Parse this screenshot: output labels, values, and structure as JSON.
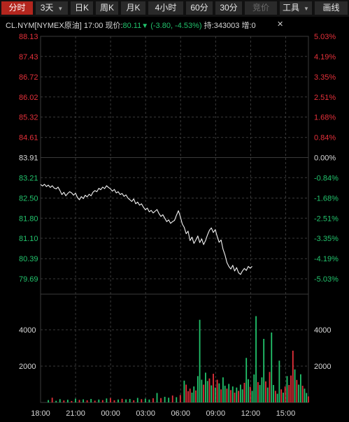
{
  "toolbar": {
    "tabs": [
      {
        "label": "分时",
        "active": true
      },
      {
        "label": "3天",
        "dropdown": true
      },
      {
        "label": "日K"
      },
      {
        "label": "周K"
      },
      {
        "label": "月K"
      },
      {
        "label": "4小时"
      },
      {
        "label": "60分"
      },
      {
        "label": "30分"
      },
      {
        "label": "竞价",
        "disabled": true
      },
      {
        "label": "工具",
        "dropdown": true
      },
      {
        "label": "画线"
      }
    ]
  },
  "info": {
    "symbol": "CL.NYM[NYMEX原油]",
    "time": "17:00",
    "price_label": "现价:",
    "price": "80.11",
    "change": "(-3.80, -4.53%)",
    "holding": "持:343003",
    "increase_label": "增:0"
  },
  "colors": {
    "up": "#e5303a",
    "down": "#22c36c",
    "neutral": "#d8d8d8",
    "grid": "#3a3a3a",
    "price_line": "#f2f2f2"
  },
  "chart_data": {
    "type": "line",
    "reference_price": 83.91,
    "price_axis_labels": [
      "88.13",
      "87.43",
      "86.72",
      "86.02",
      "85.32",
      "84.61",
      "83.91",
      "83.21",
      "82.50",
      "81.80",
      "81.10",
      "80.39",
      "79.69"
    ],
    "percent_axis_labels": [
      "5.03%",
      "4.19%",
      "3.35%",
      "2.51%",
      "1.68%",
      "0.84%",
      "0.00%",
      "-0.84%",
      "-1.68%",
      "-2.51%",
      "-3.35%",
      "-4.19%",
      "-5.03%"
    ],
    "ylim": [
      79.69,
      88.13
    ],
    "volume_axis_labels": [
      "4000",
      "2000"
    ],
    "volume_ylim": [
      0,
      5000
    ],
    "x_tick_labels": [
      "18:00",
      "21:00",
      "00:00",
      "03:00",
      "06:00",
      "09:00",
      "12:00",
      "15:00"
    ],
    "x_range": [
      0,
      69
    ],
    "price_series": [
      [
        0,
        82.97
      ],
      [
        0.5,
        82.92
      ],
      [
        1,
        82.98
      ],
      [
        1.5,
        82.9
      ],
      [
        2,
        82.95
      ],
      [
        2.5,
        82.87
      ],
      [
        3,
        82.93
      ],
      [
        3.5,
        82.85
      ],
      [
        4,
        82.82
      ],
      [
        4.5,
        82.88
      ],
      [
        5,
        82.76
      ],
      [
        5.5,
        82.62
      ],
      [
        6,
        82.7
      ],
      [
        6.5,
        82.58
      ],
      [
        7,
        82.66
      ],
      [
        7.5,
        82.72
      ],
      [
        8,
        82.68
      ],
      [
        8.5,
        82.6
      ],
      [
        9,
        82.67
      ],
      [
        9.5,
        82.52
      ],
      [
        10,
        82.44
      ],
      [
        10.5,
        82.55
      ],
      [
        11,
        82.48
      ],
      [
        11.5,
        82.6
      ],
      [
        12,
        82.54
      ],
      [
        12.5,
        82.63
      ],
      [
        13,
        82.58
      ],
      [
        13.5,
        82.7
      ],
      [
        14,
        82.76
      ],
      [
        14.5,
        82.72
      ],
      [
        15,
        82.84
      ],
      [
        15.5,
        82.79
      ],
      [
        16,
        82.88
      ],
      [
        16.5,
        82.83
      ],
      [
        17,
        82.93
      ],
      [
        17.5,
        82.87
      ],
      [
        18,
        82.82
      ],
      [
        18.5,
        82.74
      ],
      [
        19,
        82.8
      ],
      [
        19.5,
        82.68
      ],
      [
        20,
        82.72
      ],
      [
        20.5,
        82.62
      ],
      [
        21,
        82.66
      ],
      [
        21.5,
        82.56
      ],
      [
        22,
        82.61
      ],
      [
        22.5,
        82.5
      ],
      [
        23,
        82.44
      ],
      [
        23.5,
        82.38
      ],
      [
        24,
        82.47
      ],
      [
        24.5,
        82.3
      ],
      [
        25,
        82.36
      ],
      [
        25.5,
        82.25
      ],
      [
        26,
        82.3
      ],
      [
        26.5,
        82.18
      ],
      [
        27,
        82.09
      ],
      [
        27.5,
        82.15
      ],
      [
        28,
        82.02
      ],
      [
        28.5,
        82.07
      ],
      [
        29,
        81.98
      ],
      [
        29.5,
        82.04
      ],
      [
        30,
        82.1
      ],
      [
        30.5,
        81.96
      ],
      [
        31,
        81.86
      ],
      [
        31.5,
        81.92
      ],
      [
        32,
        81.8
      ],
      [
        32.5,
        81.68
      ],
      [
        33,
        81.74
      ],
      [
        33.5,
        81.62
      ],
      [
        34,
        81.68
      ],
      [
        34.5,
        81.72
      ],
      [
        35,
        81.9
      ],
      [
        35.5,
        82.06
      ],
      [
        36,
        81.86
      ],
      [
        36.5,
        81.6
      ],
      [
        37,
        81.48
      ],
      [
        37.5,
        81.26
      ],
      [
        38,
        81.35
      ],
      [
        38.5,
        81.02
      ],
      [
        39,
        81.14
      ],
      [
        39.5,
        80.92
      ],
      [
        40,
        81.04
      ],
      [
        40.5,
        81.18
      ],
      [
        41,
        80.95
      ],
      [
        41.5,
        81.08
      ],
      [
        42,
        80.88
      ],
      [
        42.5,
        81.02
      ],
      [
        43,
        81.22
      ],
      [
        43.5,
        81.38
      ],
      [
        44,
        81.46
      ],
      [
        44.5,
        81.3
      ],
      [
        45,
        81.4
      ],
      [
        45.5,
        81.16
      ],
      [
        46,
        80.96
      ],
      [
        46.5,
        81.04
      ],
      [
        47,
        80.72
      ],
      [
        47.5,
        80.52
      ],
      [
        48,
        80.26
      ],
      [
        48.5,
        80.12
      ],
      [
        49,
        80.03
      ],
      [
        49.5,
        80.16
      ],
      [
        50,
        79.96
      ],
      [
        50.5,
        80.08
      ],
      [
        51,
        79.9
      ],
      [
        51.5,
        79.84
      ],
      [
        52,
        79.96
      ],
      [
        52.5,
        80.05
      ],
      [
        53,
        79.98
      ],
      [
        53.5,
        80.12
      ],
      [
        54,
        80.06
      ],
      [
        54.5,
        80.12
      ]
    ],
    "volume_series": [
      {
        "x": 2,
        "v": 130,
        "dir": "down"
      },
      {
        "x": 3,
        "v": 260,
        "dir": "up"
      },
      {
        "x": 4,
        "v": 90,
        "dir": "down"
      },
      {
        "x": 5,
        "v": 180,
        "dir": "down"
      },
      {
        "x": 6,
        "v": 110,
        "dir": "up"
      },
      {
        "x": 7,
        "v": 150,
        "dir": "down"
      },
      {
        "x": 8,
        "v": 80,
        "dir": "up"
      },
      {
        "x": 9,
        "v": 210,
        "dir": "down"
      },
      {
        "x": 10,
        "v": 140,
        "dir": "up"
      },
      {
        "x": 11,
        "v": 170,
        "dir": "down"
      },
      {
        "x": 12,
        "v": 120,
        "dir": "up"
      },
      {
        "x": 13,
        "v": 190,
        "dir": "down"
      },
      {
        "x": 14,
        "v": 100,
        "dir": "up"
      },
      {
        "x": 15,
        "v": 160,
        "dir": "down"
      },
      {
        "x": 16,
        "v": 130,
        "dir": "up"
      },
      {
        "x": 17,
        "v": 220,
        "dir": "down"
      },
      {
        "x": 18,
        "v": 240,
        "dir": "up"
      },
      {
        "x": 19,
        "v": 120,
        "dir": "up"
      },
      {
        "x": 20,
        "v": 160,
        "dir": "down"
      },
      {
        "x": 21,
        "v": 200,
        "dir": "up"
      },
      {
        "x": 22,
        "v": 170,
        "dir": "down"
      },
      {
        "x": 23,
        "v": 190,
        "dir": "down"
      },
      {
        "x": 24,
        "v": 120,
        "dir": "up"
      },
      {
        "x": 25,
        "v": 250,
        "dir": "down"
      },
      {
        "x": 26,
        "v": 180,
        "dir": "up"
      },
      {
        "x": 27,
        "v": 210,
        "dir": "down"
      },
      {
        "x": 28,
        "v": 160,
        "dir": "down"
      },
      {
        "x": 29,
        "v": 230,
        "dir": "up"
      },
      {
        "x": 30,
        "v": 520,
        "dir": "down"
      },
      {
        "x": 31,
        "v": 240,
        "dir": "up"
      },
      {
        "x": 32,
        "v": 310,
        "dir": "down"
      },
      {
        "x": 33,
        "v": 260,
        "dir": "down"
      },
      {
        "x": 34,
        "v": 380,
        "dir": "up"
      },
      {
        "x": 35,
        "v": 290,
        "dir": "down"
      },
      {
        "x": 36,
        "v": 410,
        "dir": "up"
      },
      {
        "x": 37,
        "v": 1200,
        "dir": "down"
      },
      {
        "x": 37.5,
        "v": 980,
        "dir": "up"
      },
      {
        "x": 38,
        "v": 620,
        "dir": "up"
      },
      {
        "x": 38.5,
        "v": 760,
        "dir": "up"
      },
      {
        "x": 39,
        "v": 540,
        "dir": "down"
      },
      {
        "x": 39.5,
        "v": 880,
        "dir": "down"
      },
      {
        "x": 40,
        "v": 660,
        "dir": "up"
      },
      {
        "x": 40.5,
        "v": 1450,
        "dir": "down"
      },
      {
        "x": 41,
        "v": 4550,
        "dir": "down"
      },
      {
        "x": 41.5,
        "v": 1250,
        "dir": "down"
      },
      {
        "x": 42,
        "v": 980,
        "dir": "up"
      },
      {
        "x": 42.5,
        "v": 1640,
        "dir": "down"
      },
      {
        "x": 43,
        "v": 1180,
        "dir": "down"
      },
      {
        "x": 43.5,
        "v": 1320,
        "dir": "up"
      },
      {
        "x": 44,
        "v": 940,
        "dir": "down"
      },
      {
        "x": 44.5,
        "v": 1580,
        "dir": "up"
      },
      {
        "x": 45,
        "v": 820,
        "dir": "down"
      },
      {
        "x": 45.5,
        "v": 1250,
        "dir": "up"
      },
      {
        "x": 46,
        "v": 1050,
        "dir": "down"
      },
      {
        "x": 46.5,
        "v": 720,
        "dir": "up"
      },
      {
        "x": 47,
        "v": 1380,
        "dir": "down"
      },
      {
        "x": 47.5,
        "v": 920,
        "dir": "down"
      },
      {
        "x": 48,
        "v": 760,
        "dir": "up"
      },
      {
        "x": 48.5,
        "v": 1020,
        "dir": "down"
      },
      {
        "x": 49,
        "v": 680,
        "dir": "up"
      },
      {
        "x": 49.5,
        "v": 880,
        "dir": "down"
      },
      {
        "x": 50,
        "v": 540,
        "dir": "up"
      },
      {
        "x": 50.5,
        "v": 820,
        "dir": "down"
      },
      {
        "x": 51,
        "v": 640,
        "dir": "up"
      },
      {
        "x": 51.5,
        "v": 980,
        "dir": "down"
      },
      {
        "x": 52,
        "v": 720,
        "dir": "down"
      },
      {
        "x": 52.5,
        "v": 1080,
        "dir": "up"
      },
      {
        "x": 53,
        "v": 2450,
        "dir": "down"
      },
      {
        "x": 53.5,
        "v": 1280,
        "dir": "down"
      },
      {
        "x": 54,
        "v": 860,
        "dir": "up"
      },
      {
        "x": 54.5,
        "v": 640,
        "dir": "down"
      },
      {
        "x": 55,
        "v": 1540,
        "dir": "down"
      },
      {
        "x": 55.5,
        "v": 4750,
        "dir": "down"
      },
      {
        "x": 56,
        "v": 1120,
        "dir": "up"
      },
      {
        "x": 56.5,
        "v": 960,
        "dir": "down"
      },
      {
        "x": 57,
        "v": 1380,
        "dir": "down"
      },
      {
        "x": 57.5,
        "v": 3500,
        "dir": "down"
      },
      {
        "x": 58,
        "v": 1160,
        "dir": "up"
      },
      {
        "x": 58.5,
        "v": 820,
        "dir": "down"
      },
      {
        "x": 59,
        "v": 1680,
        "dir": "up"
      },
      {
        "x": 59.5,
        "v": 3850,
        "dir": "down"
      },
      {
        "x": 60,
        "v": 960,
        "dir": "down"
      },
      {
        "x": 60.5,
        "v": 640,
        "dir": "up"
      },
      {
        "x": 61,
        "v": 480,
        "dir": "down"
      },
      {
        "x": 61.5,
        "v": 2300,
        "dir": "down"
      },
      {
        "x": 62,
        "v": 720,
        "dir": "up"
      },
      {
        "x": 62.5,
        "v": 540,
        "dir": "down"
      },
      {
        "x": 63,
        "v": 880,
        "dir": "up"
      },
      {
        "x": 63.5,
        "v": 1450,
        "dir": "down"
      },
      {
        "x": 64,
        "v": 960,
        "dir": "up"
      },
      {
        "x": 64.5,
        "v": 1480,
        "dir": "up"
      },
      {
        "x": 65,
        "v": 2850,
        "dir": "up"
      },
      {
        "x": 65.5,
        "v": 1820,
        "dir": "down"
      },
      {
        "x": 66,
        "v": 1240,
        "dir": "up"
      },
      {
        "x": 66.5,
        "v": 980,
        "dir": "down"
      },
      {
        "x": 67,
        "v": 1550,
        "dir": "down"
      },
      {
        "x": 67.5,
        "v": 920,
        "dir": "up"
      },
      {
        "x": 68,
        "v": 760,
        "dir": "down"
      },
      {
        "x": 68.5,
        "v": 520,
        "dir": "down"
      },
      {
        "x": 69,
        "v": 330,
        "dir": "up"
      }
    ]
  }
}
